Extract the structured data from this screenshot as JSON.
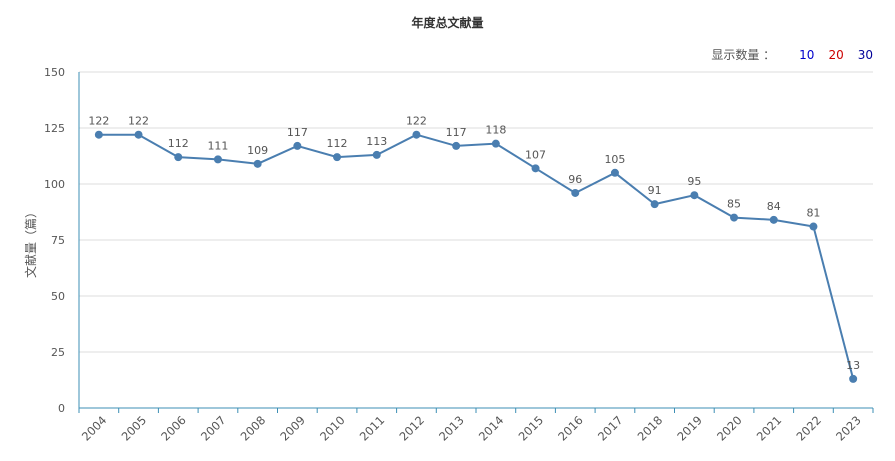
{
  "count_selector": {
    "label": "显示数量 ：",
    "options": [
      {
        "value": "10",
        "color": "#0000cc"
      },
      {
        "value": "20",
        "color": "#cc0000"
      },
      {
        "value": "30",
        "color": "#000099"
      }
    ]
  },
  "chart_data": {
    "type": "line",
    "title": "年度总文献量",
    "xlabel": "",
    "ylabel": "文献量（篇）",
    "ylim": [
      0,
      150
    ],
    "yticks": [
      0,
      25,
      50,
      75,
      100,
      125,
      150
    ],
    "grid": true,
    "categories": [
      "2004",
      "2005",
      "2006",
      "2007",
      "2008",
      "2009",
      "2010",
      "2011",
      "2012",
      "2013",
      "2014",
      "2015",
      "2016",
      "2017",
      "2018",
      "2019",
      "2020",
      "2021",
      "2022",
      "2023"
    ],
    "series": [
      {
        "values": [
          122,
          122,
          112,
          111,
          109,
          117,
          112,
          113,
          122,
          117,
          118,
          107,
          96,
          105,
          91,
          95,
          85,
          84,
          81,
          13
        ],
        "color": "#4a7eb0"
      }
    ]
  }
}
